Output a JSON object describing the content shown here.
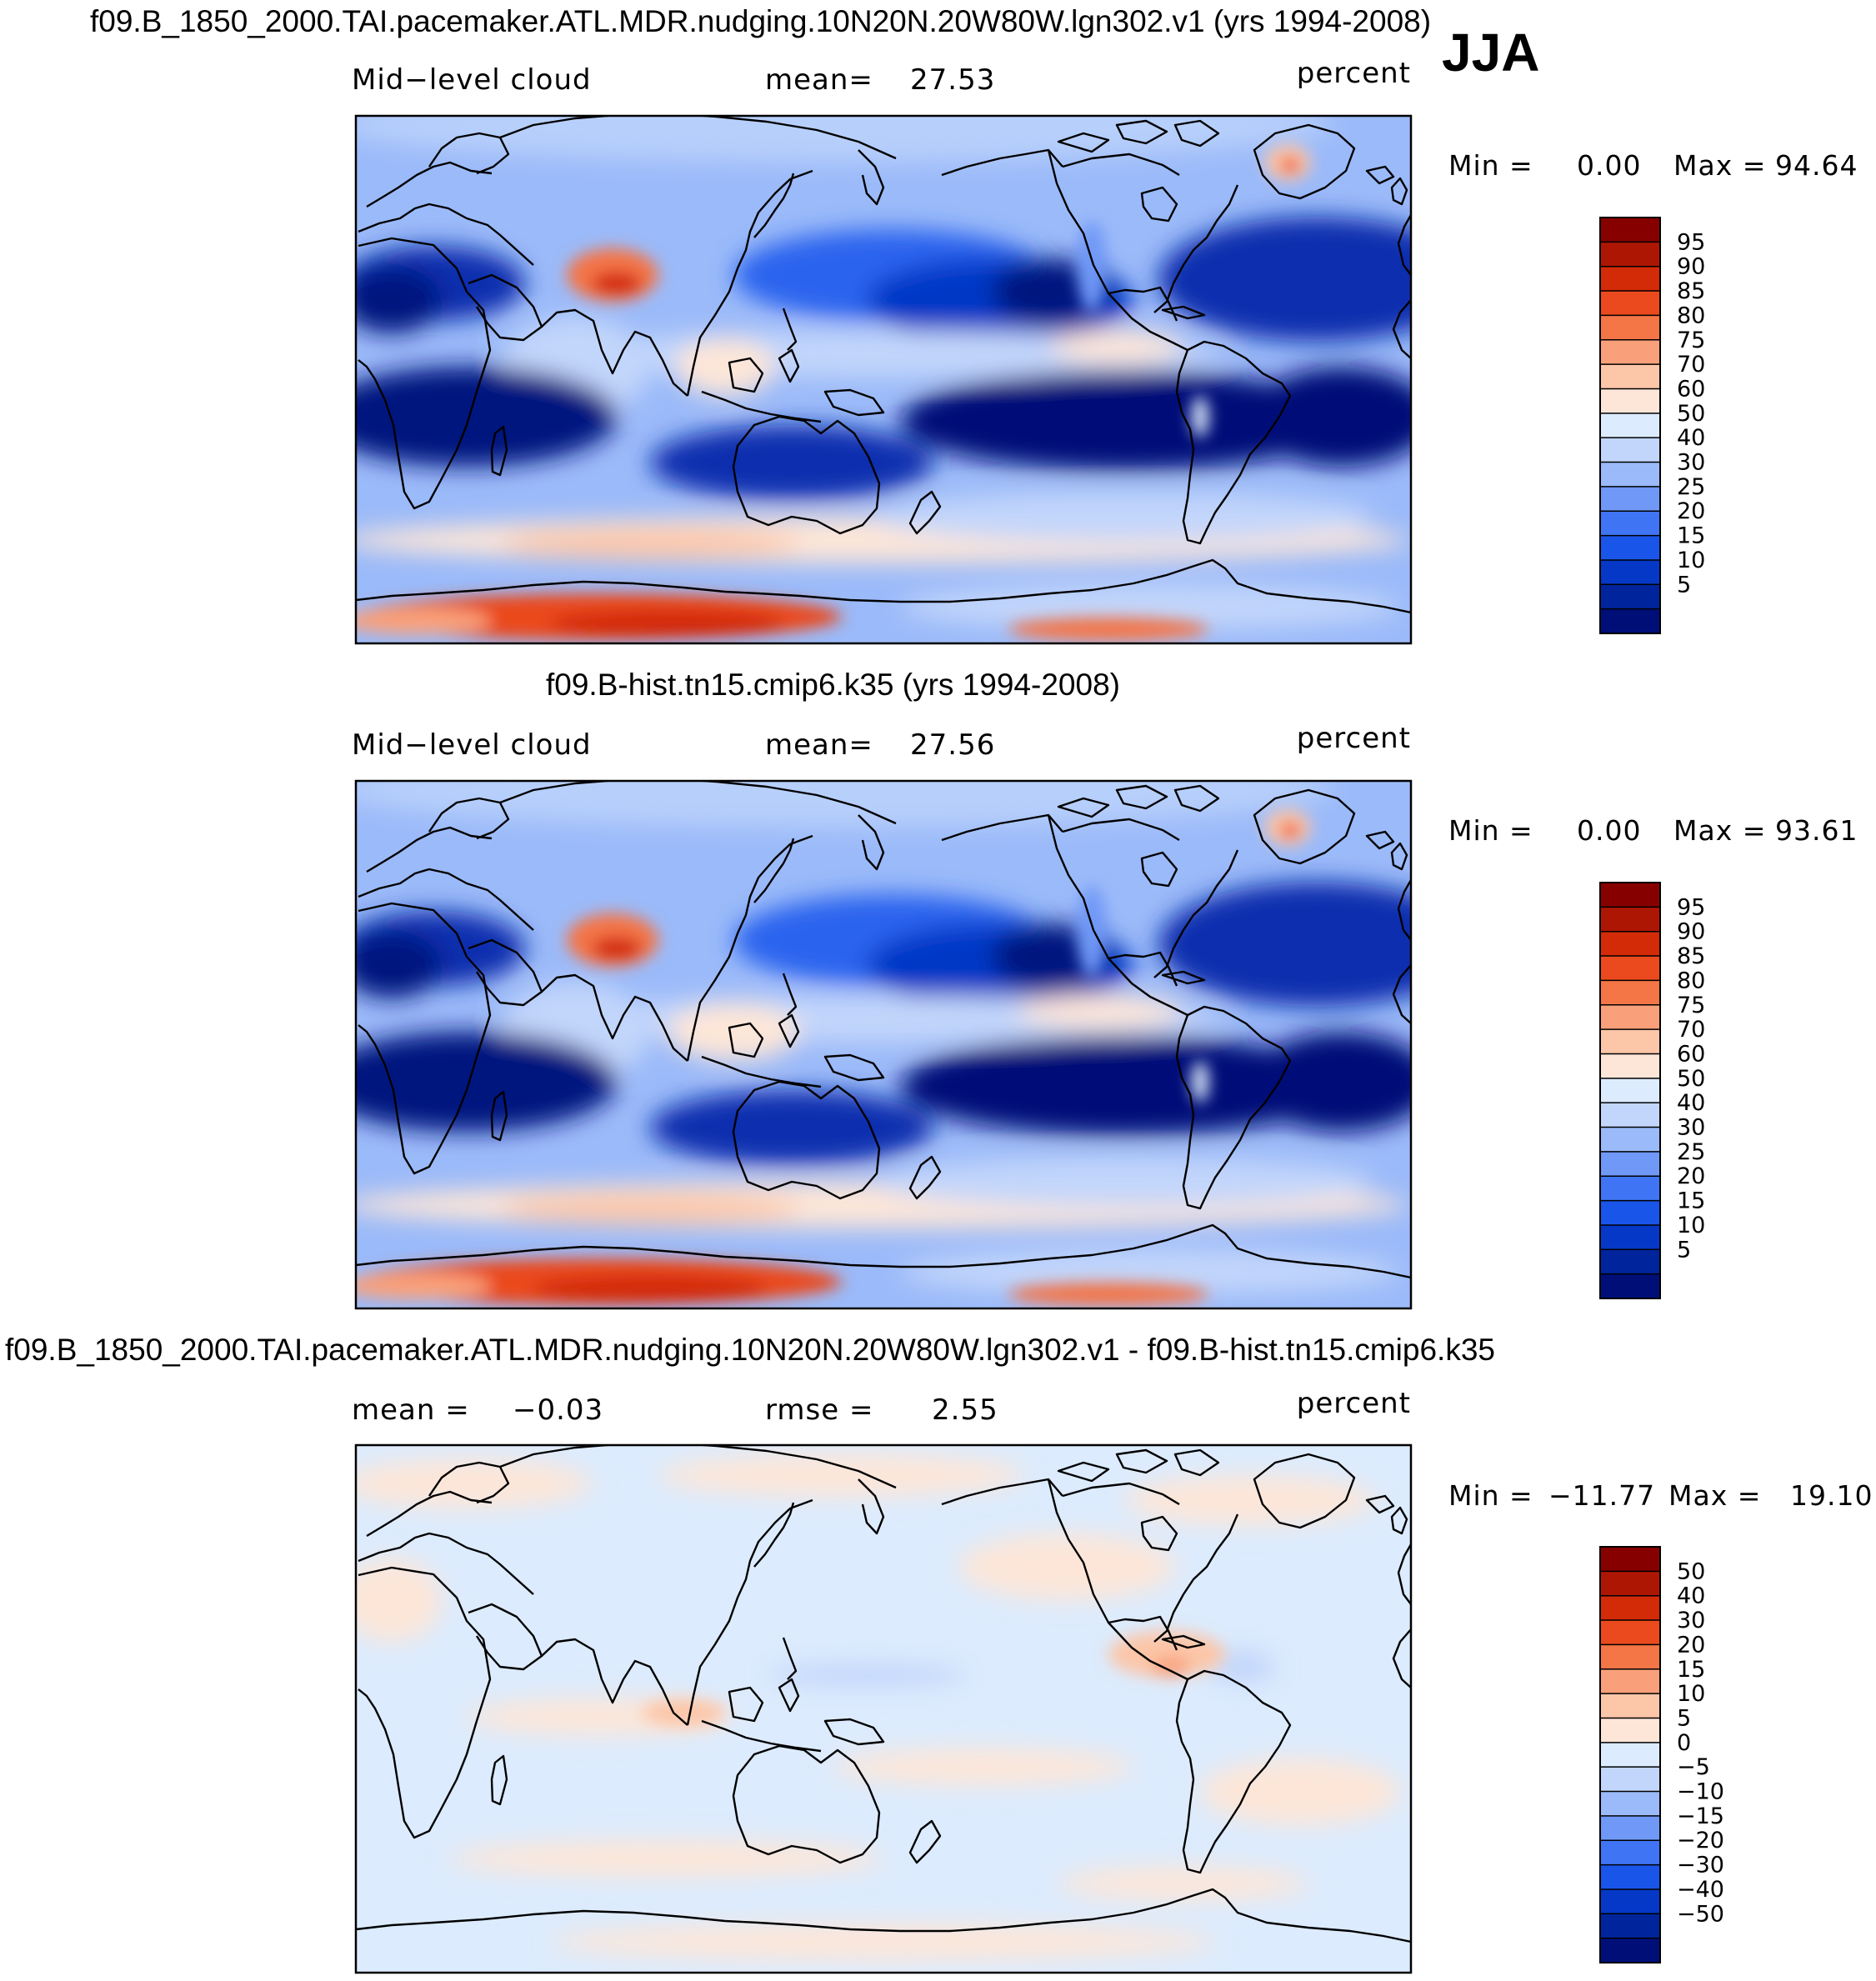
{
  "season": "JJA",
  "colors": {
    "abs_levels": [
      "#000f78",
      "#00249b",
      "#0538c6",
      "#1a55ea",
      "#3f75f5",
      "#6f98f7",
      "#9bbaf9",
      "#c2d6fb",
      "#dcebfd",
      "#fde6d8",
      "#fcc6a8",
      "#f9a07a",
      "#f47546",
      "#ea4a1e",
      "#d32b08",
      "#ae1604",
      "#870000"
    ],
    "diff_levels": [
      "#000f78",
      "#00249b",
      "#0538c6",
      "#1a55ea",
      "#3f75f5",
      "#6f98f7",
      "#9bbaf9",
      "#c2d6fb",
      "#dcebfd",
      "#fde6d8",
      "#fcc6a8",
      "#f9a07a",
      "#f47546",
      "#ea4a1e",
      "#d32b08",
      "#ae1604",
      "#870000"
    ]
  },
  "chart_data": [
    {
      "type": "heatmap",
      "title": "f09.B_1850_2000.TAI.pacemaker.ATL.MDR.nudging.10N20N.20W80W.lgn302.v1 (yrs 1994-2008)",
      "variable": "Mid−level  cloud",
      "mean_label": "mean=",
      "mean_value": "27.53",
      "units": "percent",
      "min_label": "Min  =",
      "min_value": "0.00",
      "max_label": "Max  =",
      "max_value": "94.64",
      "colorbar_ticks": [
        "95",
        "90",
        "85",
        "80",
        "75",
        "70",
        "60",
        "50",
        "40",
        "30",
        "25",
        "20",
        "15",
        "10",
        "5"
      ]
    },
    {
      "type": "heatmap",
      "title": "f09.B-hist.tn15.cmip6.k35 (yrs 1994-2008)",
      "variable": "Mid−level  cloud",
      "mean_label": "mean=",
      "mean_value": "27.56",
      "units": "percent",
      "min_label": "Min  =",
      "min_value": "0.00",
      "max_label": "Max  =",
      "max_value": "93.61",
      "colorbar_ticks": [
        "95",
        "90",
        "85",
        "80",
        "75",
        "70",
        "60",
        "50",
        "40",
        "30",
        "25",
        "20",
        "15",
        "10",
        "5"
      ]
    },
    {
      "type": "heatmap",
      "title": "f09.B_1850_2000.TAI.pacemaker.ATL.MDR.nudging.10N20N.20W80W.lgn302.v1 - f09.B-hist.tn15.cmip6.k35",
      "variable": "mean  =",
      "mean_label": "",
      "mean_value": "−0.03",
      "rmse_label": "rmse  =",
      "rmse_value": "2.55",
      "units": "percent",
      "min_label": "Min  =",
      "min_value": "−11.77",
      "max_label": "Max  =",
      "max_value": "19.10",
      "colorbar_ticks": [
        "50",
        "40",
        "30",
        "20",
        "15",
        "10",
        "5",
        "0",
        "−5",
        "−10",
        "−15",
        "−20",
        "−30",
        "−40",
        "−50"
      ]
    }
  ]
}
